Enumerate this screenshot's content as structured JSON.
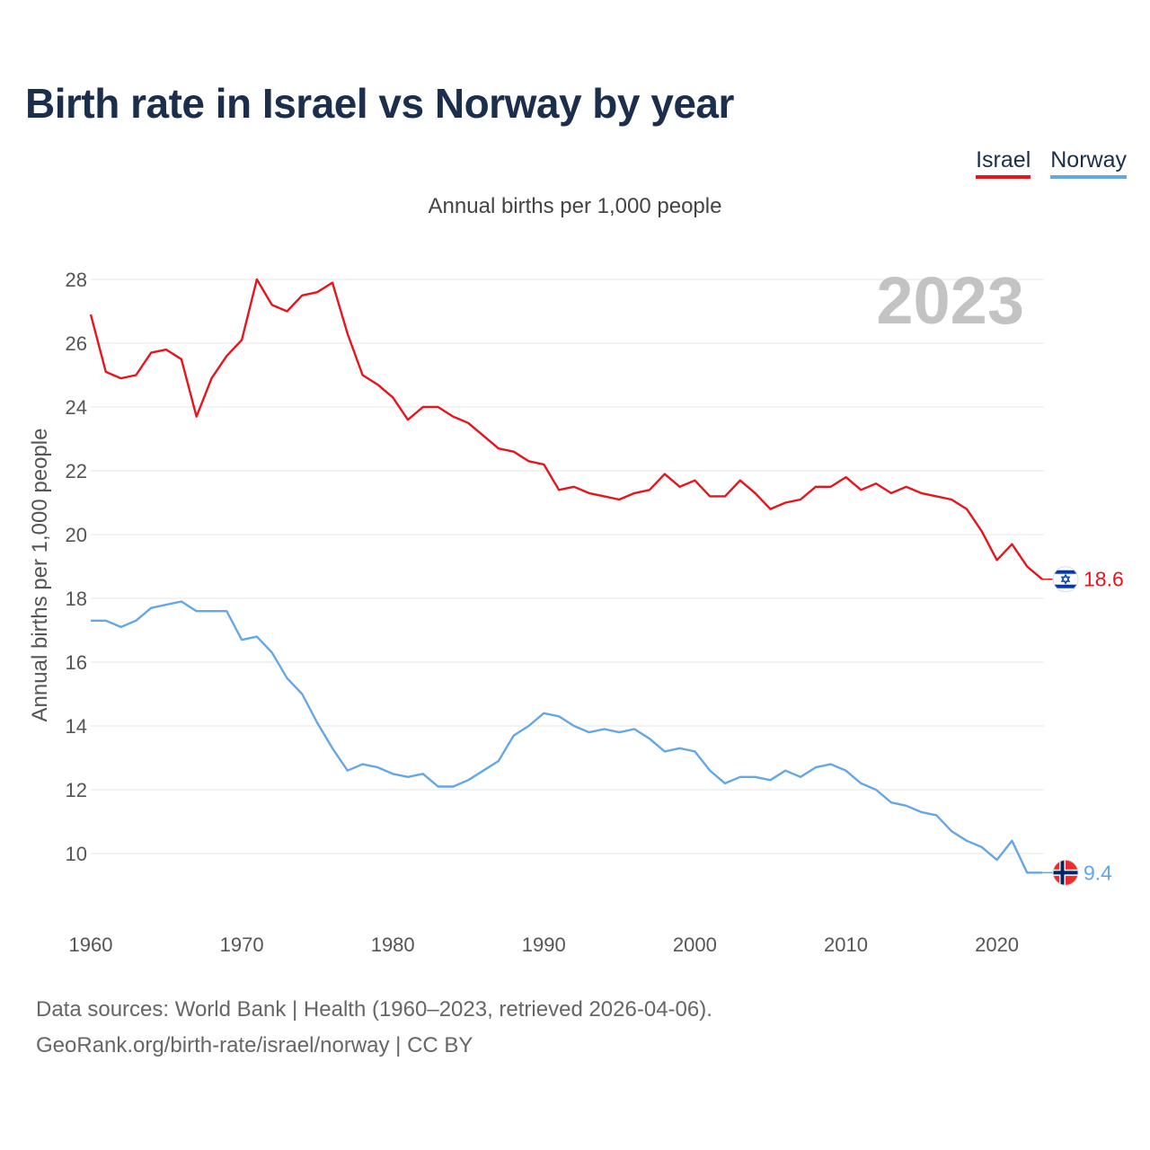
{
  "title": "Birth rate in Israel vs Norway by year",
  "subtitle": "Annual births per 1,000 people",
  "footer": {
    "line1": "Data sources: World Bank | Health (1960–2023, retrieved 2026-04-06).",
    "line2": "GeoRank.org/birth-rate/israel/norway | CC BY"
  },
  "legend": [
    {
      "name": "Israel",
      "color": "#e8141b"
    },
    {
      "name": "Norway",
      "color": "#64a7e6"
    }
  ],
  "year_watermark": "2023",
  "chart_data": {
    "type": "line",
    "title": "Birth rate in Israel vs Norway by year",
    "xlabel": "",
    "ylabel": "Annual births per 1,000 people",
    "xlim": [
      1960,
      2023
    ],
    "ylim": [
      8.5,
      28.5
    ],
    "x_ticks": [
      1960,
      1970,
      1980,
      1990,
      2000,
      2010,
      2020
    ],
    "y_ticks": [
      10,
      12,
      14,
      16,
      18,
      20,
      22,
      24,
      26,
      28
    ],
    "x": [
      1960,
      1961,
      1962,
      1963,
      1964,
      1965,
      1966,
      1967,
      1968,
      1969,
      1970,
      1971,
      1972,
      1973,
      1974,
      1975,
      1976,
      1977,
      1978,
      1979,
      1980,
      1981,
      1982,
      1983,
      1984,
      1985,
      1986,
      1987,
      1988,
      1989,
      1990,
      1991,
      1992,
      1993,
      1994,
      1995,
      1996,
      1997,
      1998,
      1999,
      2000,
      2001,
      2002,
      2003,
      2004,
      2005,
      2006,
      2007,
      2008,
      2009,
      2010,
      2011,
      2012,
      2013,
      2014,
      2015,
      2016,
      2017,
      2018,
      2019,
      2020,
      2021,
      2022,
      2023
    ],
    "series": [
      {
        "name": "Israel",
        "color": "#e8141b",
        "end_label": "18.6",
        "flag": "israel-flag",
        "values": [
          26.9,
          25.1,
          24.9,
          25.0,
          25.7,
          25.8,
          25.5,
          23.7,
          24.9,
          25.6,
          26.1,
          28.0,
          27.2,
          27.0,
          27.5,
          27.6,
          27.9,
          26.3,
          25.0,
          24.7,
          24.3,
          23.6,
          24.0,
          24.0,
          23.7,
          23.5,
          23.1,
          22.7,
          22.6,
          22.3,
          22.2,
          21.4,
          21.5,
          21.3,
          21.2,
          21.1,
          21.3,
          21.4,
          21.9,
          21.5,
          21.7,
          21.2,
          21.2,
          21.7,
          21.3,
          20.8,
          21.0,
          21.1,
          21.5,
          21.5,
          21.8,
          21.4,
          21.6,
          21.3,
          21.5,
          21.3,
          21.2,
          21.1,
          20.8,
          20.1,
          19.2,
          19.7,
          19.0,
          18.6
        ]
      },
      {
        "name": "Norway",
        "color": "#64a7e6",
        "end_label": "9.4",
        "flag": "norway-flag",
        "values": [
          17.3,
          17.3,
          17.1,
          17.3,
          17.7,
          17.8,
          17.9,
          17.6,
          17.6,
          17.6,
          16.7,
          16.8,
          16.3,
          15.5,
          15.0,
          14.1,
          13.3,
          12.6,
          12.8,
          12.7,
          12.5,
          12.4,
          12.5,
          12.1,
          12.1,
          12.3,
          12.6,
          12.9,
          13.7,
          14.0,
          14.4,
          14.3,
          14.0,
          13.8,
          13.9,
          13.8,
          13.9,
          13.6,
          13.2,
          13.3,
          13.2,
          12.6,
          12.2,
          12.4,
          12.4,
          12.3,
          12.6,
          12.4,
          12.7,
          12.8,
          12.6,
          12.2,
          12.0,
          11.6,
          11.5,
          11.3,
          11.2,
          10.7,
          10.4,
          10.2,
          9.8,
          10.4,
          9.4,
          9.4
        ]
      }
    ]
  }
}
